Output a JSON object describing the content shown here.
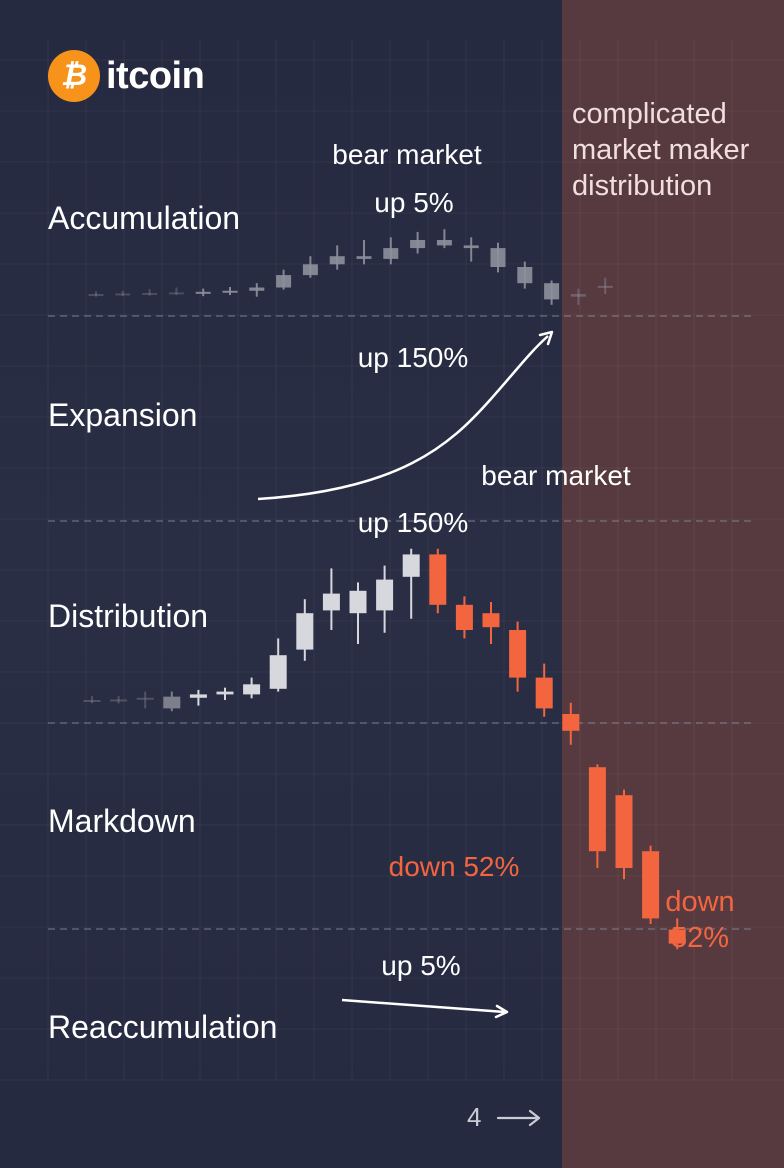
{
  "brand": {
    "coin_symbol": "₿",
    "name_text": "itcoin",
    "coin_color": "#f7931a"
  },
  "stages": [
    {
      "label": "Accumulation"
    },
    {
      "label": "Expansion"
    },
    {
      "label": "Distribution"
    },
    {
      "label": "Markdown"
    },
    {
      "label": "Reaccumulation"
    }
  ],
  "annotations": {
    "bear_market_top": "bear market",
    "up_5_top": "up 5%",
    "up_150_expansion": "up 150%",
    "bear_market_mid": "bear market",
    "up_150_distribution": "up 150%",
    "down_52_left": "down 52%",
    "up_5_bottom": "up 5%"
  },
  "right_panel": {
    "note": "complicated market maker distribution",
    "down_label": "down 52%"
  },
  "page": {
    "number": "4",
    "arrow_icon": "arrow-right-icon"
  },
  "colors": {
    "background": "#262a40",
    "right_panel": "#573a40",
    "up_candle": "#d6d8de",
    "down_candle": "#f2653f",
    "faded_candle": "#7d808c"
  },
  "chart_data": [
    {
      "type": "candlestick",
      "name": "upper-cycle",
      "series": [
        {
          "o": 100,
          "h": 100.5,
          "l": 99.5,
          "c": 100
        },
        {
          "o": 100,
          "h": 100.6,
          "l": 99.6,
          "c": 100.1
        },
        {
          "o": 100.1,
          "h": 100.9,
          "l": 99.7,
          "c": 100.2
        },
        {
          "o": 100.2,
          "h": 101.2,
          "l": 99.8,
          "c": 100.3
        },
        {
          "o": 100.3,
          "h": 101.0,
          "l": 99.6,
          "c": 100.4
        },
        {
          "o": 100.4,
          "h": 101.3,
          "l": 99.8,
          "c": 100.6
        },
        {
          "o": 100.6,
          "h": 102.0,
          "l": 99.5,
          "c": 101.2
        },
        {
          "o": 101.2,
          "h": 104.5,
          "l": 100.8,
          "c": 103.5
        },
        {
          "o": 103.5,
          "h": 107.0,
          "l": 103.0,
          "c": 105.5
        },
        {
          "o": 105.5,
          "h": 109.0,
          "l": 104.5,
          "c": 107.0
        },
        {
          "o": 107.0,
          "h": 110.0,
          "l": 105.5,
          "c": 106.5
        },
        {
          "o": 106.5,
          "h": 110.5,
          "l": 105.5,
          "c": 108.5
        },
        {
          "o": 108.5,
          "h": 111.5,
          "l": 107.5,
          "c": 110.0
        },
        {
          "o": 110.0,
          "h": 112.0,
          "l": 108.5,
          "c": 109.0
        },
        {
          "o": 109.0,
          "h": 110.5,
          "l": 106.0,
          "c": 108.5
        },
        {
          "o": 108.5,
          "h": 109.5,
          "l": 104.0,
          "c": 105.0
        },
        {
          "o": 105.0,
          "h": 106.0,
          "l": 101.0,
          "c": 102.0
        },
        {
          "o": 102.0,
          "h": 102.5,
          "l": 98.0,
          "c": 99.0
        },
        {
          "o": 99.5,
          "h": 101.0,
          "l": 98.0,
          "c": 100.0
        },
        {
          "o": 101.5,
          "h": 103.0,
          "l": 100.0,
          "c": 101.5
        }
      ]
    },
    {
      "type": "candlestick",
      "name": "lower-cycle",
      "series": [
        {
          "o": 100,
          "h": 100.7,
          "l": 99.4,
          "c": 100
        },
        {
          "o": 100,
          "h": 100.7,
          "l": 99.4,
          "c": 100.1
        },
        {
          "o": 100.1,
          "h": 101.5,
          "l": 98.5,
          "c": 100.4
        },
        {
          "o": 98.5,
          "h": 101.5,
          "l": 98.0,
          "c": 100.6
        },
        {
          "o": 100.4,
          "h": 101.8,
          "l": 99.0,
          "c": 101.0
        },
        {
          "o": 101.0,
          "h": 102.2,
          "l": 100.0,
          "c": 101.5
        },
        {
          "o": 101.0,
          "h": 104.0,
          "l": 100.3,
          "c": 102.8
        },
        {
          "o": 102.0,
          "h": 111.0,
          "l": 101.5,
          "c": 108.0
        },
        {
          "o": 109.0,
          "h": 118.0,
          "l": 107.0,
          "c": 115.5
        },
        {
          "o": 116.0,
          "h": 123.5,
          "l": 112.5,
          "c": 119.0
        },
        {
          "o": 115.5,
          "h": 121.0,
          "l": 110.0,
          "c": 119.5
        },
        {
          "o": 116.0,
          "h": 124.0,
          "l": 112.0,
          "c": 121.5
        },
        {
          "o": 122.0,
          "h": 127.0,
          "l": 114.5,
          "c": 126.0
        },
        {
          "o": 126.0,
          "h": 127.0,
          "l": 115.5,
          "c": 117.0
        },
        {
          "o": 117.0,
          "h": 118.5,
          "l": 111.0,
          "c": 112.5
        },
        {
          "o": 115.5,
          "h": 117.5,
          "l": 110.0,
          "c": 113.0
        },
        {
          "o": 112.5,
          "h": 114.0,
          "l": 101.5,
          "c": 104.0
        },
        {
          "o": 104.0,
          "h": 106.5,
          "l": 97.0,
          "c": 98.5
        },
        {
          "o": 97.5,
          "h": 99.5,
          "l": 92.0,
          "c": 94.5
        },
        {
          "o": 88.0,
          "h": 88.5,
          "l": 70.0,
          "c": 73.0
        },
        {
          "o": 83.0,
          "h": 84.0,
          "l": 68.0,
          "c": 70.0
        },
        {
          "o": 73.0,
          "h": 74.0,
          "l": 60.0,
          "c": 61.0
        },
        {
          "o": 59.0,
          "h": 61.0,
          "l": 55.5,
          "c": 56.5
        }
      ]
    }
  ]
}
